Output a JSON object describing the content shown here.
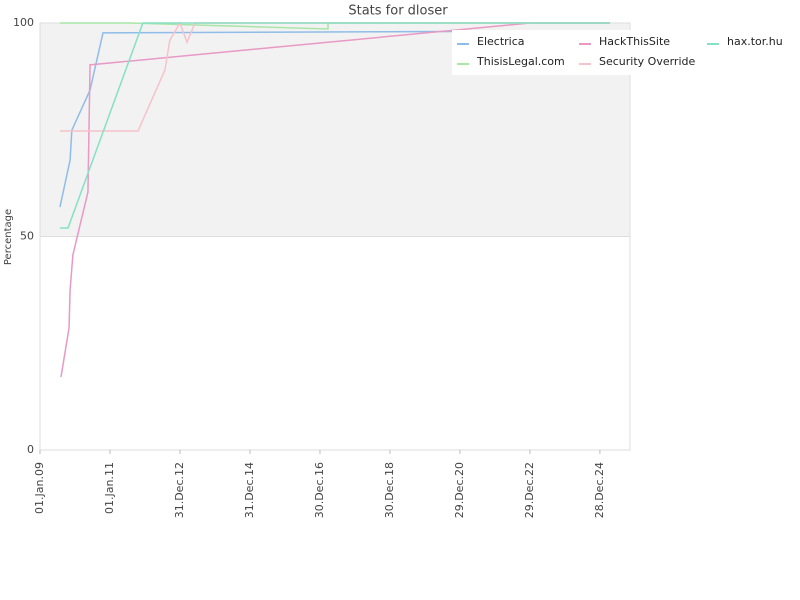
{
  "chart_data": {
    "type": "line",
    "title": "Stats for dloser",
    "ylabel": "Percentage",
    "xlim": [
      2009,
      2025.86
    ],
    "ylim": [
      0,
      100
    ],
    "yticks": [
      0,
      50,
      100
    ],
    "xticks": [
      {
        "value": 2009.0,
        "label": "01.Jan.09"
      },
      {
        "value": 2011.0,
        "label": "01.Jan.11"
      },
      {
        "value": 2013.0,
        "label": "31.Dec.12"
      },
      {
        "value": 2015.0,
        "label": "31.Dec.14"
      },
      {
        "value": 2017.0,
        "label": "30.Dec.16"
      },
      {
        "value": 2019.0,
        "label": "30.Dec.18"
      },
      {
        "value": 2021.0,
        "label": "29.Dec.20"
      },
      {
        "value": 2023.0,
        "label": "29.Dec.22"
      },
      {
        "value": 2025.0,
        "label": "28.Dec.24"
      }
    ],
    "band": {
      "from": 50,
      "to": 100,
      "color": "#f2f2f2"
    },
    "legend": "upper right",
    "series": [
      {
        "name": "Electrica",
        "color": "#8fbce8",
        "x": [
          2009.57,
          2009.86,
          2009.91,
          2010.43,
          2010.8,
          2020.86
        ],
        "values": [
          56.9,
          67.9,
          74.9,
          84.3,
          97.7,
          98
        ]
      },
      {
        "name": "ThisisLegal.com",
        "color": "#a8e6a8",
        "x": [
          2009.57,
          2011.57,
          2013.57,
          2017.23,
          2017.23,
          2025.29
        ],
        "values": [
          100,
          100,
          99.5,
          98.6,
          100,
          100
        ]
      },
      {
        "name": "HackThisSite",
        "color": "#e899c4",
        "x": [
          2009.6,
          2009.83,
          2009.86,
          2009.94,
          2010.37,
          2010.43,
          2023.0,
          2025.29
        ],
        "values": [
          17.1,
          28.6,
          37.5,
          45.7,
          60.4,
          90.2,
          100,
          100
        ]
      },
      {
        "name": "Security Override",
        "color": "#f6c2cb",
        "x": [
          2009.57,
          2011.8,
          2012.57,
          2012.71,
          2013.0,
          2013.2,
          2013.43,
          2025.29
        ],
        "values": [
          74.7,
          74.7,
          89,
          96,
          100,
          95.5,
          100,
          100
        ]
      },
      {
        "name": "hax.tor.hu",
        "color": "#86e0c4",
        "x": [
          2009.57,
          2009.8,
          2011.94,
          2025.29
        ],
        "values": [
          52,
          52,
          100,
          100
        ]
      }
    ]
  }
}
